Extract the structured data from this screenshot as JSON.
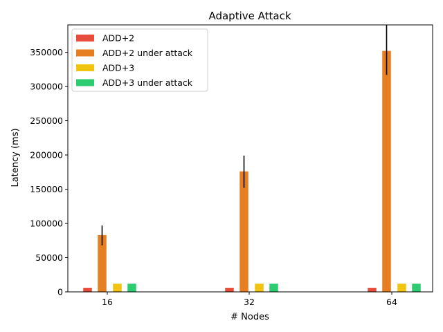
{
  "chart_data": {
    "type": "bar",
    "title": "Adaptive Attack",
    "xlabel": "# Nodes",
    "ylabel": "Latency (ms)",
    "categories": [
      "16",
      "32",
      "64"
    ],
    "ylim": [
      0,
      390000
    ],
    "yticks": [
      0,
      50000,
      100000,
      150000,
      200000,
      250000,
      300000,
      350000
    ],
    "ytick_labels": [
      "0",
      "50000",
      "100000",
      "150000",
      "200000",
      "250000",
      "300000",
      "350000"
    ],
    "grid": false,
    "legend_position": "top-left",
    "series": [
      {
        "name": "ADD+2",
        "color": "#e74c3c",
        "values": [
          6000,
          6000,
          6000
        ],
        "errors": [
          null,
          null,
          null
        ]
      },
      {
        "name": "ADD+2 under attack",
        "color": "#e67e22",
        "values": [
          83000,
          176000,
          352000
        ],
        "errors": [
          [
            68000,
            97000
          ],
          [
            152000,
            199000
          ],
          [
            317000,
            390000
          ]
        ]
      },
      {
        "name": "ADD+3",
        "color": "#f1c40f",
        "values": [
          12000,
          12000,
          12000
        ],
        "errors": [
          null,
          null,
          null
        ]
      },
      {
        "name": "ADD+3 under attack",
        "color": "#2ecc71",
        "values": [
          12000,
          12000,
          12000
        ],
        "errors": [
          null,
          null,
          null
        ]
      }
    ]
  }
}
